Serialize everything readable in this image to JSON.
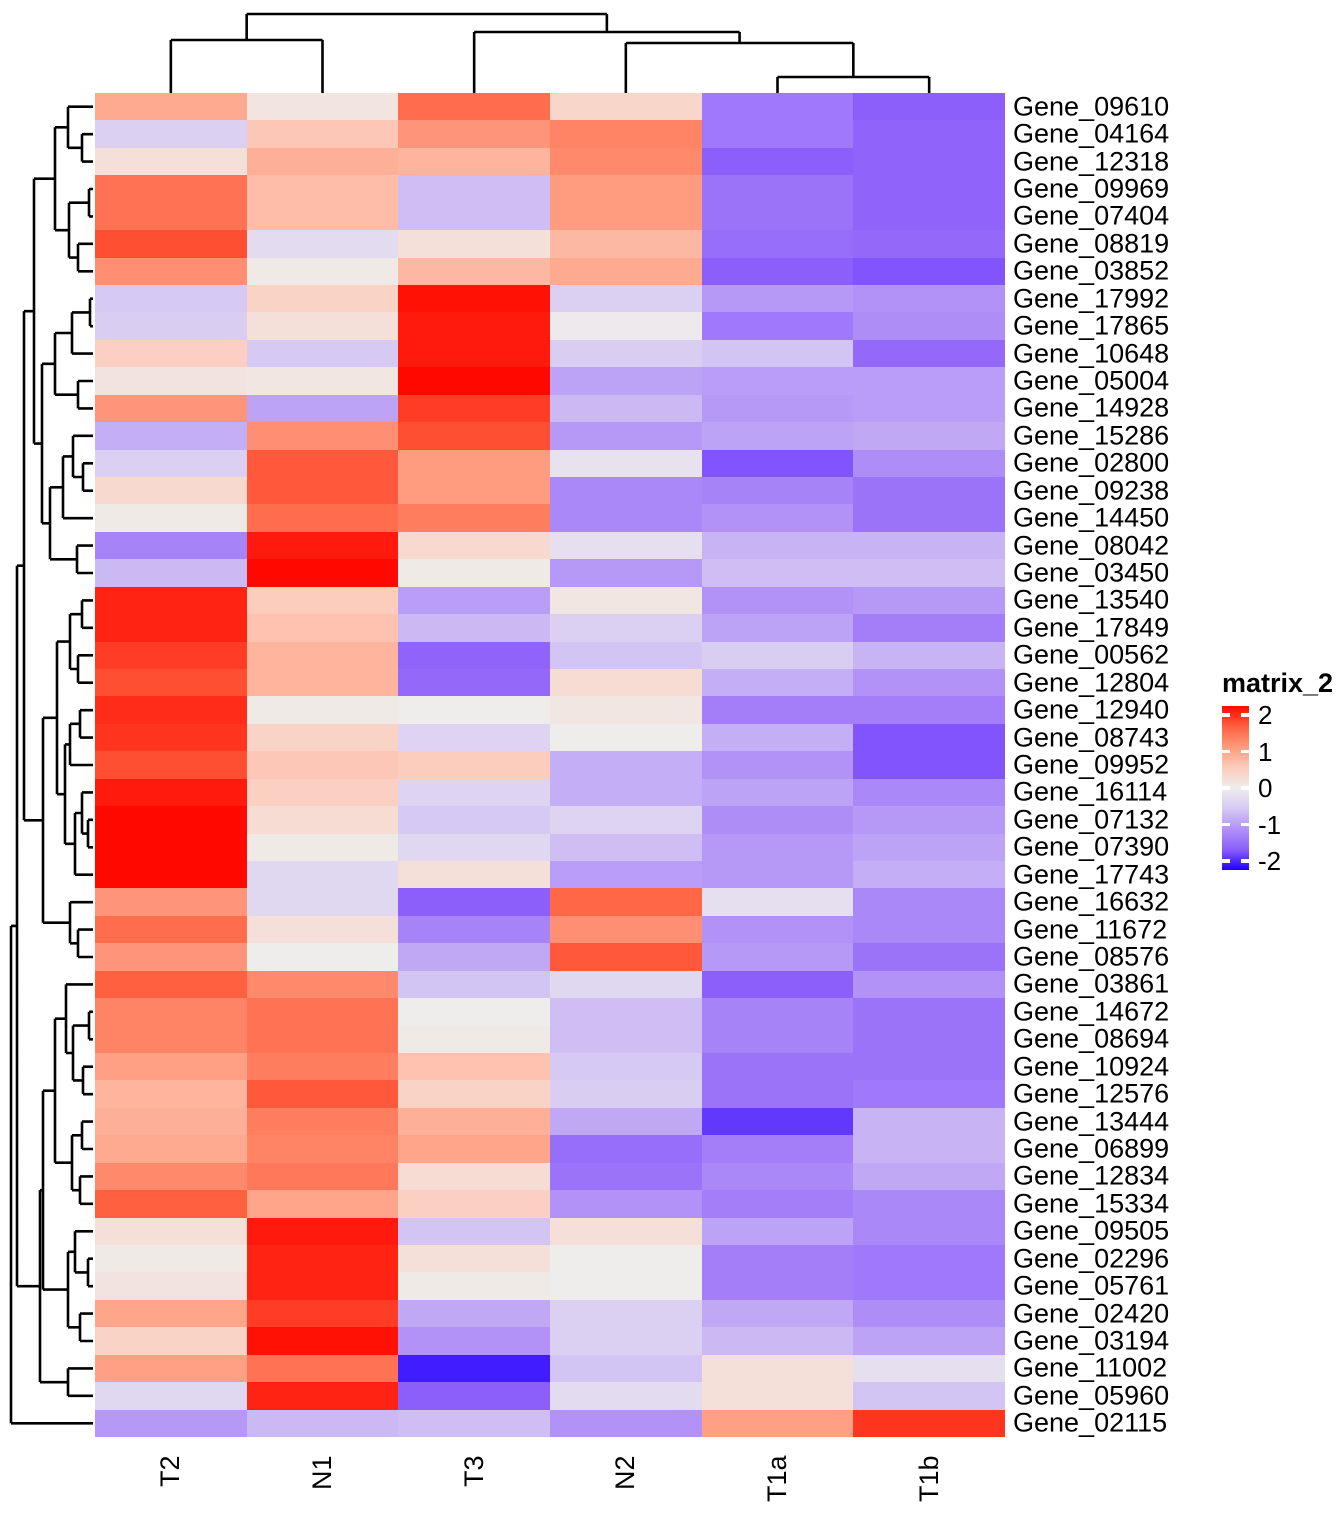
{
  "legend": {
    "title": "matrix_2",
    "tick_labels": [
      "2",
      "1",
      "0",
      "-1",
      "-2"
    ]
  },
  "chart_data": {
    "type": "heatmap",
    "title": "",
    "legend_title": "matrix_2",
    "legend_position": "right",
    "value_range": [
      -2,
      2
    ],
    "colormap": {
      "stops": [
        -2,
        -1.5,
        -1,
        -0.5,
        0,
        0.5,
        1,
        1.5,
        2
      ],
      "colors": [
        "#2000ff",
        "#8c5ffa",
        "#b292f7",
        "#d6c9f3",
        "#efedec",
        "#fcccbc",
        "#ff9b7e",
        "#ff6140",
        "#ff0800"
      ]
    },
    "columns": [
      "T2",
      "N1",
      "T3",
      "N2",
      "T1a",
      "T1b"
    ],
    "rows": [
      "Gene_09610",
      "Gene_04164",
      "Gene_12318",
      "Gene_09969",
      "Gene_07404",
      "Gene_08819",
      "Gene_03852",
      "Gene_17992",
      "Gene_17865",
      "Gene_10648",
      "Gene_05004",
      "Gene_14928",
      "Gene_15286",
      "Gene_02800",
      "Gene_09238",
      "Gene_14450",
      "Gene_08042",
      "Gene_03450",
      "Gene_13540",
      "Gene_17849",
      "Gene_00562",
      "Gene_12804",
      "Gene_12940",
      "Gene_08743",
      "Gene_09952",
      "Gene_16114",
      "Gene_07132",
      "Gene_07390",
      "Gene_17743",
      "Gene_16632",
      "Gene_11672",
      "Gene_08576",
      "Gene_03861",
      "Gene_14672",
      "Gene_08694",
      "Gene_10924",
      "Gene_12576",
      "Gene_13444",
      "Gene_06899",
      "Gene_12834",
      "Gene_15334",
      "Gene_09505",
      "Gene_02296",
      "Gene_05761",
      "Gene_02420",
      "Gene_03194",
      "Gene_11002",
      "Gene_05960",
      "Gene_02115"
    ],
    "values": [
      [
        0.85,
        0.12,
        1.4,
        0.35,
        -1.25,
        -1.5
      ],
      [
        -0.4,
        0.55,
        1.05,
        1.2,
        -1.25,
        -1.45
      ],
      [
        0.2,
        0.8,
        0.75,
        1.15,
        -1.5,
        -1.45
      ],
      [
        1.35,
        0.65,
        -0.6,
        1.0,
        -1.3,
        -1.45
      ],
      [
        1.35,
        0.65,
        -0.6,
        1.0,
        -1.3,
        -1.45
      ],
      [
        1.6,
        -0.25,
        0.2,
        0.7,
        -1.35,
        -1.4
      ],
      [
        1.1,
        0.05,
        0.7,
        0.85,
        -1.5,
        -1.55
      ],
      [
        -0.5,
        0.4,
        1.95,
        -0.4,
        -0.95,
        -1.0
      ],
      [
        -0.45,
        0.2,
        1.9,
        -0.05,
        -1.25,
        -1.05
      ],
      [
        0.45,
        -0.5,
        1.9,
        -0.45,
        -0.55,
        -1.4
      ],
      [
        0.15,
        0.1,
        2.0,
        -0.85,
        -0.9,
        -0.9
      ],
      [
        1.05,
        -0.85,
        1.7,
        -0.65,
        -0.95,
        -0.9
      ],
      [
        -0.75,
        1.1,
        1.6,
        -0.95,
        -0.85,
        -0.8
      ],
      [
        -0.4,
        1.55,
        1.0,
        -0.15,
        -1.55,
        -1.05
      ],
      [
        0.3,
        1.55,
        1.0,
        -1.1,
        -1.15,
        -1.3
      ],
      [
        0.05,
        1.4,
        1.25,
        -1.1,
        -1.0,
        -1.3
      ],
      [
        -1.15,
        1.9,
        0.3,
        -0.2,
        -0.7,
        -0.7
      ],
      [
        -0.65,
        2.0,
        0.05,
        -0.95,
        -0.6,
        -0.6
      ],
      [
        1.85,
        0.5,
        -0.9,
        0.1,
        -1.0,
        -0.95
      ],
      [
        1.85,
        0.6,
        -0.65,
        -0.4,
        -0.85,
        -1.2
      ],
      [
        1.7,
        0.75,
        -1.45,
        -0.55,
        -0.45,
        -0.7
      ],
      [
        1.6,
        0.75,
        -1.4,
        0.25,
        -0.75,
        -1.0
      ],
      [
        1.8,
        0.05,
        0.0,
        0.1,
        -1.2,
        -1.2
      ],
      [
        1.75,
        0.4,
        -0.35,
        0.0,
        -0.75,
        -1.55
      ],
      [
        1.6,
        0.55,
        0.5,
        -0.75,
        -1.0,
        -1.55
      ],
      [
        1.9,
        0.45,
        -0.35,
        -0.75,
        -0.85,
        -1.1
      ],
      [
        2.0,
        0.25,
        -0.5,
        -0.35,
        -1.05,
        -0.95
      ],
      [
        2.0,
        0.05,
        -0.3,
        -0.6,
        -0.95,
        -0.85
      ],
      [
        2.0,
        -0.3,
        0.2,
        -0.9,
        -0.95,
        -0.75
      ],
      [
        1.05,
        -0.3,
        -1.5,
        1.45,
        -0.2,
        -1.1
      ],
      [
        1.4,
        0.2,
        -1.15,
        1.1,
        -1.0,
        -1.1
      ],
      [
        1.05,
        0.0,
        -0.8,
        1.55,
        -0.95,
        -1.3
      ],
      [
        1.5,
        1.15,
        -0.55,
        -0.3,
        -1.5,
        -1.0
      ],
      [
        1.2,
        1.35,
        0.0,
        -0.6,
        -1.15,
        -1.3
      ],
      [
        1.2,
        1.35,
        0.05,
        -0.6,
        -1.15,
        -1.3
      ],
      [
        0.95,
        1.25,
        0.6,
        -0.5,
        -1.3,
        -1.3
      ],
      [
        0.75,
        1.55,
        0.4,
        -0.45,
        -1.3,
        -1.25
      ],
      [
        0.8,
        1.25,
        0.8,
        -0.8,
        -1.7,
        -0.7
      ],
      [
        0.85,
        1.2,
        0.9,
        -1.35,
        -1.2,
        -0.7
      ],
      [
        1.15,
        1.3,
        0.25,
        -1.3,
        -1.1,
        -0.8
      ],
      [
        1.5,
        0.9,
        0.45,
        -1.0,
        -1.2,
        -1.1
      ],
      [
        0.2,
        1.9,
        -0.55,
        0.2,
        -0.85,
        -1.1
      ],
      [
        0.05,
        1.85,
        0.2,
        0.0,
        -1.2,
        -1.25
      ],
      [
        0.15,
        1.85,
        0.05,
        0.0,
        -1.2,
        -1.25
      ],
      [
        0.9,
        1.7,
        -0.8,
        -0.4,
        -0.8,
        -1.05
      ],
      [
        0.4,
        1.95,
        -1.0,
        -0.4,
        -0.65,
        -0.85
      ],
      [
        0.95,
        1.35,
        -1.85,
        -0.55,
        0.2,
        -0.2
      ],
      [
        -0.3,
        1.85,
        -1.5,
        -0.25,
        0.2,
        -0.55
      ],
      [
        -0.95,
        -0.65,
        -0.6,
        -1.0,
        0.95,
        1.75
      ]
    ],
    "row_dendrogram": [
      11,
      [
        17,
        [
          24,
          [
            34,
            [
              55,
              [
                68,
                0,
                [
                  82,
                  1,
                  2
                ]
              ],
              [
                69,
                [
                  89,
                  3,
                  4
                ],
                [
                  78,
                  5,
                  6
                ]
              ]
            ],
            [
              42,
              [
                55,
                [
                  72,
                  [
                    90,
                    7,
                    8
                  ],
                  9
                ],
                [
                  78,
                  10,
                  11
                ]
              ],
              [
                50,
                [
                  63,
                  [
                    73,
                    12,
                    [
                      83,
                      13,
                      14
                    ]
                  ],
                  15
                ],
                [
                  77,
                  16,
                  17
                ]
              ]
            ]
          ],
          [
            43,
            [
              57,
              [
                70,
                [
                  82,
                  18,
                  19
                ],
                [
                  78,
                  20,
                  21
                ]
              ],
              [
                65,
                [
                  70,
                  [
                    80,
                    22,
                    23
                  ],
                  24
                ],
                [
                  75,
                  [
                    82,
                    25,
                    [
                      88,
                      26,
                      27
                    ]
                  ],
                  28
                ]
              ]
            ],
            [
              70,
              29,
              [
                78,
                30,
                31
              ]
            ]
          ]
        ],
        [
          40,
          [
            43,
            [
              55,
              [
                66,
                32,
                [
                  73,
                  [
                    89,
                    33,
                    34
                  ],
                  [
                    83,
                    35,
                    36
                  ]
                ]
              ],
              [
                72,
                [
                  82,
                  37,
                  38
                ],
                [
                  80,
                  39,
                  40
                ]
              ]
            ],
            [
              68,
              [
                75,
                41,
                [
                  88,
                  42,
                  43
                ]
              ],
              [
                80,
                44,
                45
              ]
            ]
          ],
          [
            68,
            46,
            47
          ]
        ]
      ],
      48
    ],
    "col_dendrogram": [
      14,
      [
        40,
        0,
        1
      ],
      [
        32,
        2,
        [
          43,
          3,
          [
            77,
            4,
            5
          ]
        ]
      ]
    ],
    "grid": false
  }
}
